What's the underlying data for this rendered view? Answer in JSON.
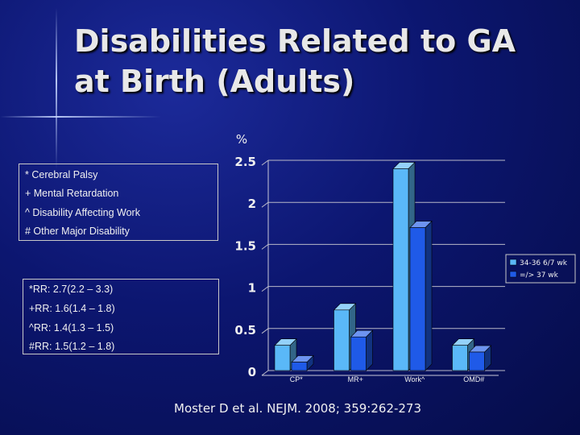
{
  "slide": {
    "title_line1": "Disabilities Related to GA",
    "title_line2": "at Birth (Adults)",
    "citation": "Moster D et al. NEJM. 2008; 359:262-273"
  },
  "abbrev_box": {
    "items": [
      "* Cerebral Palsy",
      "+ Mental Retardation",
      "^ Disability Affecting Work",
      "# Other Major Disability"
    ]
  },
  "rr_box": {
    "items": [
      "*RR:  2.7(2.2 – 3.3)",
      "+RR:  1.6(1.4 – 1.8)",
      "^RR:  1.4(1.3 – 1.5)",
      "#RR:  1.5(1.2 – 1.8)"
    ]
  },
  "chart_data": {
    "type": "bar",
    "ylabel": "%",
    "categories": [
      "CP*",
      "MR+",
      "Work^",
      "OMD#"
    ],
    "ylim": [
      0,
      2.5
    ],
    "yticks": [
      0,
      0.5,
      1,
      1.5,
      2,
      2.5
    ],
    "ytick_labels": [
      "0",
      "0.5",
      "1",
      "1.5",
      "2",
      "2.5"
    ],
    "grid": true,
    "legend_position": "right",
    "series": [
      {
        "name": "34-36 6/7 wk",
        "values": [
          0.3,
          0.72,
          2.4,
          0.3
        ],
        "color": "#5ab8f8"
      },
      {
        "name": "=/> 37 wk",
        "values": [
          0.1,
          0.4,
          1.7,
          0.22
        ],
        "color": "#1f5ae8"
      }
    ]
  }
}
